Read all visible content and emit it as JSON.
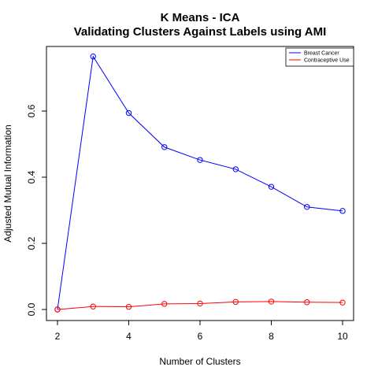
{
  "chart_data": {
    "type": "line",
    "title": "K Means - ICA",
    "subtitle": "Validating Clusters Against Labels using AMI",
    "xlabel": "Number of Clusters",
    "ylabel": "Adjusted Mutual Information",
    "x": [
      2,
      3,
      4,
      5,
      6,
      7,
      8,
      9,
      10
    ],
    "xlim": [
      2,
      10
    ],
    "ylim": [
      0,
      0.78
    ],
    "xticks": [
      2,
      4,
      6,
      8,
      10
    ],
    "yticks": [
      0.0,
      0.2,
      0.4,
      0.6
    ],
    "ytick_labels": [
      "0.0",
      "0.2",
      "0.4",
      "0.6"
    ],
    "grid": false,
    "legend_position": "top-right",
    "series": [
      {
        "name": "Breast Cancer",
        "color": "#0000ff",
        "values": [
          0.0,
          0.765,
          0.594,
          0.491,
          0.452,
          0.424,
          0.371,
          0.31,
          0.298
        ]
      },
      {
        "name": "Contraceptive Use",
        "color": "#ff0000",
        "values": [
          0.0,
          0.009,
          0.008,
          0.017,
          0.018,
          0.023,
          0.024,
          0.022,
          0.021
        ]
      }
    ]
  }
}
